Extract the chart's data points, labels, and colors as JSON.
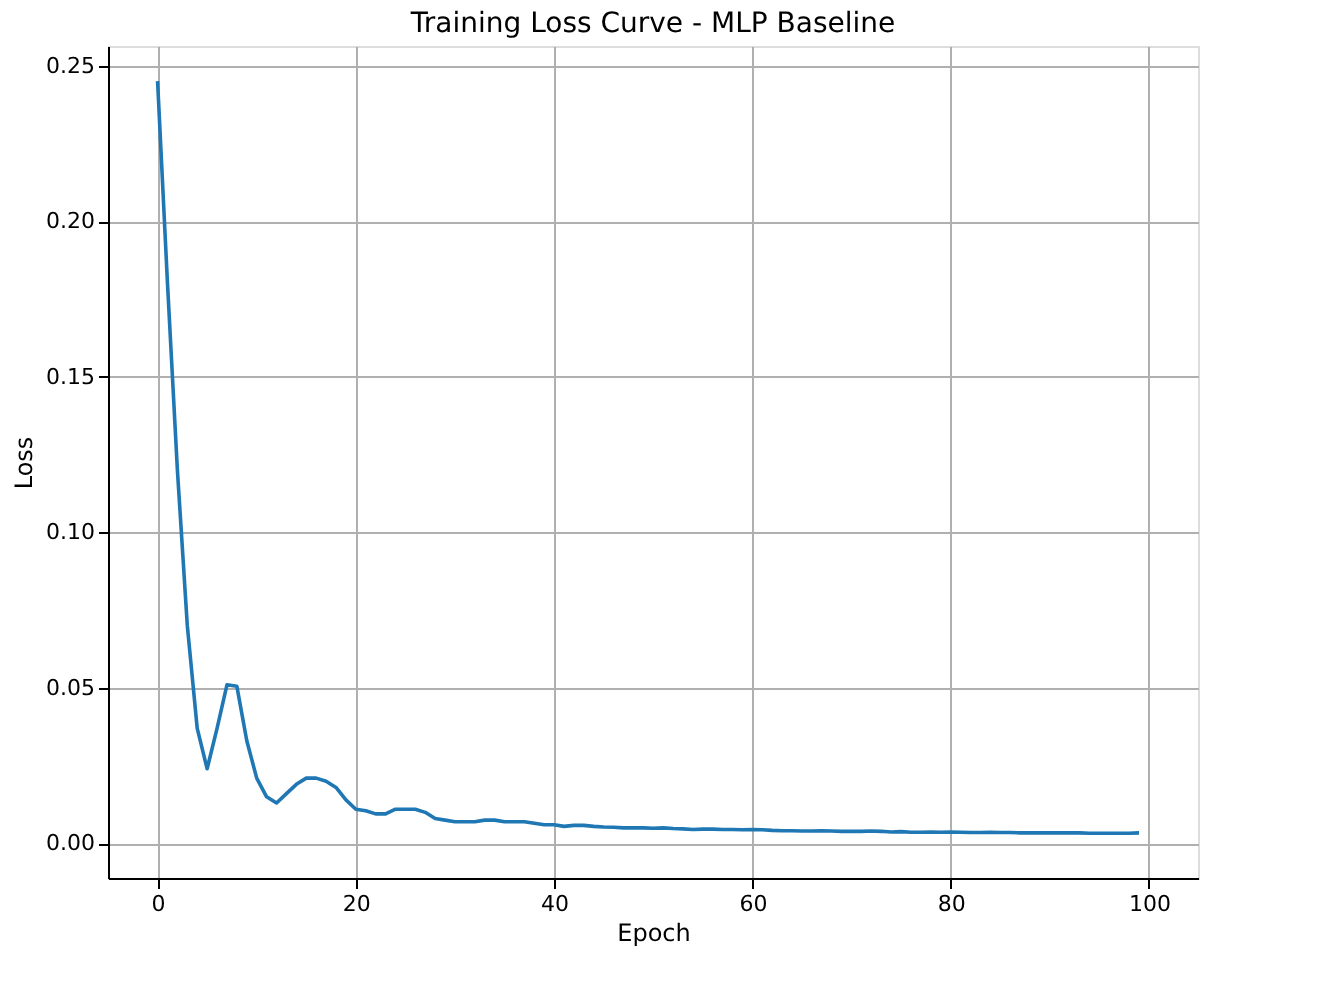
{
  "chart_data": {
    "type": "line",
    "title": "Training Loss Curve - MLP Baseline",
    "xlabel": "Epoch",
    "ylabel": "Loss",
    "x": [
      0,
      1,
      2,
      3,
      4,
      5,
      6,
      7,
      8,
      9,
      10,
      11,
      12,
      13,
      14,
      15,
      16,
      17,
      18,
      19,
      20,
      21,
      22,
      23,
      24,
      25,
      26,
      27,
      28,
      29,
      30,
      31,
      32,
      33,
      34,
      35,
      36,
      37,
      38,
      39,
      40,
      41,
      42,
      43,
      44,
      45,
      46,
      47,
      48,
      49,
      50,
      51,
      52,
      53,
      54,
      55,
      56,
      57,
      58,
      59,
      60,
      61,
      62,
      63,
      64,
      65,
      66,
      67,
      68,
      69,
      70,
      71,
      72,
      73,
      74,
      75,
      76,
      77,
      78,
      79,
      80,
      81,
      82,
      83,
      84,
      85,
      86,
      87,
      88,
      89,
      90,
      91,
      92,
      93,
      94,
      95,
      96,
      97,
      98,
      99
    ],
    "series": [
      {
        "color": "#1f77b4",
        "values": [
          0.245,
          0.18,
          0.12,
          0.07,
          0.037,
          0.024,
          0.037,
          0.051,
          0.0505,
          0.033,
          0.021,
          0.015,
          0.013,
          0.016,
          0.019,
          0.021,
          0.021,
          0.02,
          0.018,
          0.014,
          0.011,
          0.0105,
          0.0095,
          0.0095,
          0.011,
          0.011,
          0.011,
          0.01,
          0.008,
          0.0075,
          0.007,
          0.007,
          0.007,
          0.0075,
          0.0075,
          0.007,
          0.007,
          0.007,
          0.0065,
          0.006,
          0.006,
          0.0055,
          0.0058,
          0.0058,
          0.0055,
          0.0053,
          0.0052,
          0.005,
          0.005,
          0.005,
          0.0049,
          0.005,
          0.0048,
          0.0047,
          0.0045,
          0.0046,
          0.0046,
          0.0045,
          0.0045,
          0.0044,
          0.0045,
          0.0044,
          0.0042,
          0.0041,
          0.0041,
          0.004,
          0.004,
          0.0041,
          0.004,
          0.0039,
          0.0039,
          0.0039,
          0.004,
          0.0039,
          0.0037,
          0.0038,
          0.0036,
          0.0036,
          0.0037,
          0.0036,
          0.0037,
          0.0036,
          0.0035,
          0.0035,
          0.0036,
          0.0035,
          0.0035,
          0.0034,
          0.0034,
          0.0034,
          0.0034,
          0.0034,
          0.0034,
          0.0034,
          0.0033,
          0.0033,
          0.0033,
          0.0033,
          0.0033,
          0.0034
        ]
      }
    ],
    "xlim": [
      -5,
      104.95
    ],
    "xticks": [
      0,
      20,
      40,
      60,
      80,
      100
    ],
    "ylim": [
      -0.0111,
      0.2563
    ],
    "yticks": [
      {
        "value": 0,
        "label": "0.00"
      },
      {
        "value": 0.05,
        "label": "0.05"
      },
      {
        "value": 0.1,
        "label": "0.10"
      },
      {
        "value": 0.15,
        "label": "0.15"
      },
      {
        "value": 0.2,
        "label": "0.20"
      },
      {
        "value": 0.25,
        "label": "0.25"
      }
    ],
    "grid": true,
    "marker": "none",
    "line_style": "solid"
  }
}
